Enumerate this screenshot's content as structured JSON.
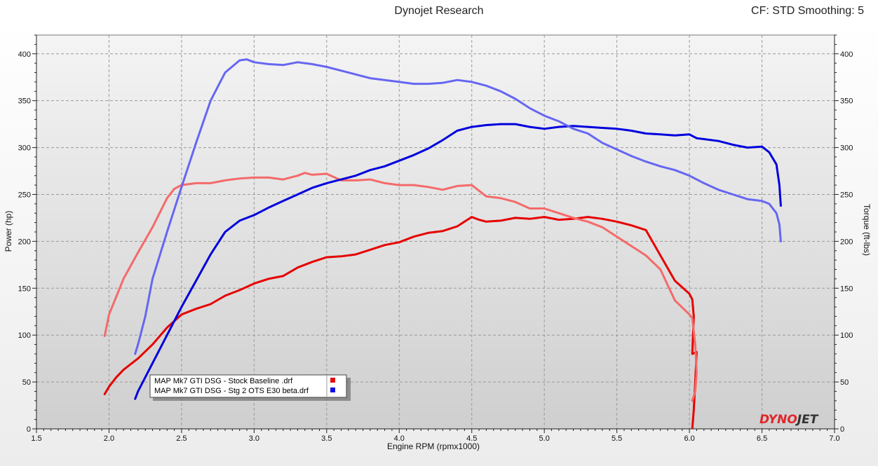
{
  "header": {
    "title": "Dynojet Research",
    "cf": "CF: STD Smoothing: 5"
  },
  "logo": {
    "part1": "DYNO",
    "part2": "JET",
    "color1": "#e0262a",
    "color2": "#333333"
  },
  "chart_data": {
    "type": "line",
    "xlabel": "Engine RPM (rpmx1000)",
    "ylabel_left": "Power (hp)",
    "ylabel_right": "Torque (ft-lbs)",
    "xlim": [
      1.5,
      7.0
    ],
    "ylim": [
      0,
      420
    ],
    "xticks": [
      1.5,
      2.0,
      2.5,
      3.0,
      3.5,
      4.0,
      4.5,
      5.0,
      5.5,
      6.0,
      6.5,
      7.0
    ],
    "xtick_labels": [
      "1.5",
      "2.0",
      "2.5",
      "3.0",
      "3.5",
      "4.0",
      "4.5",
      "5.0",
      "5.5",
      "6.0",
      "6.5",
      "7.0"
    ],
    "yticks": [
      0,
      50,
      100,
      150,
      200,
      250,
      300,
      350,
      400
    ],
    "ytick_labels": [
      "0",
      "50",
      "100",
      "150",
      "200",
      "250",
      "300",
      "350",
      "400"
    ],
    "grid": true,
    "legend": {
      "position": "bottom-left",
      "entries": [
        {
          "label": "MAP Mk7 GTI DSG - Stock Baseline .drf",
          "color": "#e01010"
        },
        {
          "label": "MAP Mk7 GTI DSG - Stg 2 OTS E30 beta.drf",
          "color": "#1010e0"
        }
      ]
    },
    "series": [
      {
        "run": "Stock Baseline",
        "measure": "Power",
        "color": "#e60000",
        "x": [
          1.97,
          2.0,
          2.05,
          2.1,
          2.2,
          2.3,
          2.4,
          2.5,
          2.6,
          2.7,
          2.8,
          2.9,
          3.0,
          3.1,
          3.2,
          3.3,
          3.4,
          3.5,
          3.6,
          3.7,
          3.8,
          3.9,
          4.0,
          4.1,
          4.2,
          4.3,
          4.4,
          4.5,
          4.55,
          4.6,
          4.7,
          4.8,
          4.9,
          5.0,
          5.1,
          5.2,
          5.3,
          5.4,
          5.5,
          5.6,
          5.7,
          5.8,
          5.9,
          6.0,
          6.02,
          6.03,
          6.02,
          6.05,
          6.04,
          6.03,
          6.02
        ],
        "y": [
          37,
          45,
          55,
          63,
          75,
          90,
          108,
          122,
          128,
          133,
          142,
          148,
          155,
          160,
          163,
          172,
          178,
          183,
          184,
          186,
          191,
          196,
          199,
          205,
          209,
          211,
          216,
          226,
          223,
          221,
          222,
          225,
          224,
          226,
          223,
          224,
          226,
          224,
          221,
          217,
          212,
          185,
          158,
          144,
          138,
          120,
          80,
          82,
          50,
          20,
          0
        ]
      },
      {
        "run": "Stock Baseline",
        "measure": "Torque",
        "color": "#f46a6a",
        "x": [
          1.97,
          2.0,
          2.1,
          2.2,
          2.3,
          2.4,
          2.45,
          2.5,
          2.6,
          2.7,
          2.8,
          2.9,
          3.0,
          3.1,
          3.2,
          3.3,
          3.35,
          3.4,
          3.5,
          3.6,
          3.7,
          3.8,
          3.9,
          4.0,
          4.1,
          4.2,
          4.3,
          4.4,
          4.5,
          4.6,
          4.7,
          4.8,
          4.9,
          5.0,
          5.1,
          5.2,
          5.3,
          5.4,
          5.5,
          5.6,
          5.7,
          5.8,
          5.9,
          6.0,
          6.02,
          6.04,
          6.05,
          6.04,
          6.02
        ],
        "y": [
          99,
          122,
          160,
          188,
          215,
          246,
          256,
          260,
          262,
          262,
          265,
          267,
          268,
          268,
          266,
          270,
          273,
          271,
          272,
          265,
          265,
          266,
          262,
          260,
          260,
          258,
          255,
          259,
          260,
          248,
          246,
          242,
          235,
          235,
          230,
          225,
          221,
          215,
          205,
          195,
          185,
          170,
          137,
          122,
          118,
          90,
          60,
          40,
          30
        ]
      },
      {
        "run": "Stg 2 OTS E30 beta",
        "measure": "Power",
        "color": "#0000dd",
        "x": [
          2.18,
          2.2,
          2.3,
          2.4,
          2.5,
          2.6,
          2.7,
          2.8,
          2.9,
          3.0,
          3.1,
          3.2,
          3.3,
          3.4,
          3.5,
          3.6,
          3.7,
          3.8,
          3.9,
          4.0,
          4.1,
          4.2,
          4.3,
          4.4,
          4.5,
          4.6,
          4.7,
          4.8,
          4.9,
          5.0,
          5.1,
          5.2,
          5.3,
          5.4,
          5.5,
          5.6,
          5.7,
          5.8,
          5.9,
          6.0,
          6.05,
          6.1,
          6.2,
          6.3,
          6.4,
          6.5,
          6.55,
          6.6,
          6.62,
          6.63
        ],
        "y": [
          32,
          40,
          70,
          100,
          130,
          158,
          186,
          210,
          222,
          228,
          236,
          243,
          250,
          257,
          262,
          266,
          270,
          276,
          280,
          286,
          292,
          299,
          308,
          318,
          322,
          324,
          325,
          325,
          322,
          320,
          322,
          323,
          322,
          321,
          320,
          318,
          315,
          314,
          313,
          314,
          310,
          309,
          307,
          303,
          300,
          301,
          295,
          282,
          260,
          238
        ]
      },
      {
        "run": "Stg 2 OTS E30 beta",
        "measure": "Torque",
        "color": "#6666f2",
        "x": [
          2.18,
          2.2,
          2.25,
          2.3,
          2.4,
          2.5,
          2.6,
          2.7,
          2.8,
          2.9,
          2.95,
          3.0,
          3.1,
          3.2,
          3.3,
          3.4,
          3.5,
          3.6,
          3.7,
          3.8,
          3.9,
          4.0,
          4.1,
          4.2,
          4.3,
          4.4,
          4.5,
          4.6,
          4.7,
          4.8,
          4.9,
          5.0,
          5.1,
          5.2,
          5.3,
          5.4,
          5.5,
          5.6,
          5.7,
          5.8,
          5.9,
          6.0,
          6.1,
          6.2,
          6.3,
          6.4,
          6.5,
          6.55,
          6.6,
          6.62,
          6.63
        ],
        "y": [
          80,
          90,
          120,
          160,
          210,
          258,
          305,
          350,
          380,
          393,
          394,
          391,
          389,
          388,
          391,
          389,
          386,
          382,
          378,
          374,
          372,
          370,
          368,
          368,
          369,
          372,
          370,
          366,
          360,
          352,
          342,
          334,
          328,
          320,
          315,
          305,
          298,
          291,
          285,
          280,
          276,
          270,
          262,
          255,
          250,
          245,
          243,
          240,
          230,
          218,
          200
        ]
      }
    ]
  }
}
